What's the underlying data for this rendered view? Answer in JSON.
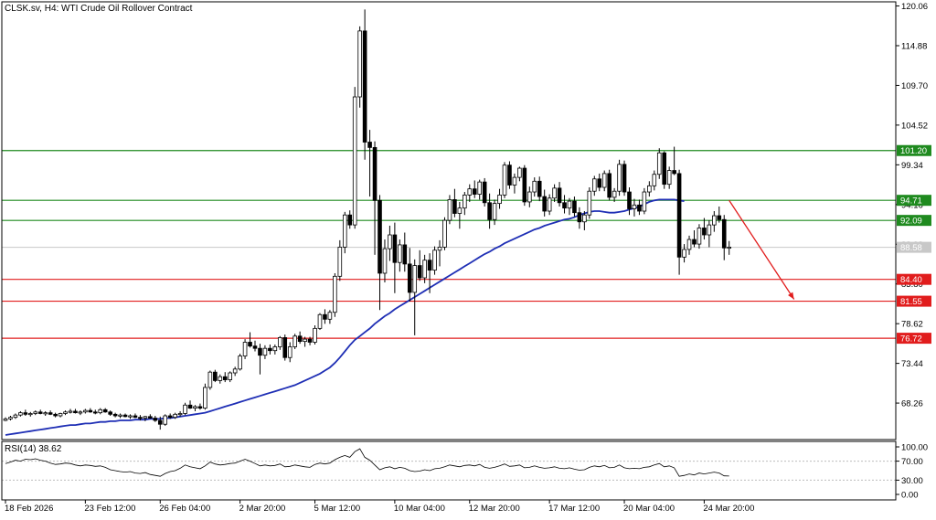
{
  "chart_data": {
    "type": "candlestick",
    "title": "CLSK.sv, H4:  WTI Crude Oil Rollover Contract",
    "ylim": [
      63.5,
      120.6
    ],
    "y_ticks": [
      "120.06",
      "114.88",
      "109.70",
      "104.52",
      "99.34",
      "94.16",
      "88.98",
      "83.80",
      "78.62",
      "73.44",
      "68.26"
    ],
    "x_ticks": [
      {
        "label": "18 Feb 2026",
        "bar": 0
      },
      {
        "label": "23 Feb 12:00",
        "bar": 16
      },
      {
        "label": "26 Feb 04:00",
        "bar": 31
      },
      {
        "label": "2 Mar 20:00",
        "bar": 47
      },
      {
        "label": "5 Mar 12:00",
        "bar": 62
      },
      {
        "label": "10 Mar 04:00",
        "bar": 78
      },
      {
        "label": "12 Mar 20:00",
        "bar": 93
      },
      {
        "label": "17 Mar 12:00",
        "bar": 109
      },
      {
        "label": "20 Mar 04:00",
        "bar": 124
      },
      {
        "label": "24 Mar 20:00",
        "bar": 140
      }
    ],
    "candles": [
      [
        66.0,
        66.4,
        65.9,
        66.2
      ],
      [
        66.2,
        66.6,
        66.0,
        66.4
      ],
      [
        66.4,
        66.9,
        66.2,
        66.7
      ],
      [
        66.7,
        67.2,
        66.5,
        67.0
      ],
      [
        67.0,
        67.4,
        66.6,
        66.8
      ],
      [
        66.8,
        67.1,
        66.5,
        66.9
      ],
      [
        66.9,
        67.3,
        66.7,
        67.1
      ],
      [
        67.1,
        67.4,
        66.8,
        66.9
      ],
      [
        66.9,
        67.2,
        66.6,
        67.0
      ],
      [
        67.0,
        67.3,
        66.7,
        66.8
      ],
      [
        66.8,
        67.0,
        66.4,
        66.6
      ],
      [
        66.6,
        67.0,
        66.4,
        66.9
      ],
      [
        66.9,
        67.3,
        66.7,
        67.1
      ],
      [
        67.1,
        67.5,
        66.9,
        67.2
      ],
      [
        67.2,
        67.5,
        66.9,
        67.0
      ],
      [
        67.0,
        67.3,
        66.7,
        67.1
      ],
      [
        67.1,
        67.5,
        66.9,
        67.3
      ],
      [
        67.3,
        67.6,
        67.0,
        67.1
      ],
      [
        67.1,
        67.4,
        66.8,
        67.0
      ],
      [
        67.0,
        67.6,
        66.8,
        67.4
      ],
      [
        67.4,
        67.6,
        67.0,
        67.1
      ],
      [
        67.1,
        67.3,
        66.6,
        66.8
      ],
      [
        66.8,
        67.0,
        66.4,
        66.6
      ],
      [
        66.6,
        66.9,
        66.3,
        66.7
      ],
      [
        66.7,
        66.9,
        66.4,
        66.5
      ],
      [
        66.5,
        66.8,
        66.2,
        66.6
      ],
      [
        66.6,
        66.9,
        66.3,
        66.4
      ],
      [
        66.4,
        66.7,
        66.0,
        66.3
      ],
      [
        66.3,
        66.6,
        65.9,
        66.5
      ],
      [
        66.5,
        66.8,
        66.2,
        66.3
      ],
      [
        66.3,
        66.6,
        65.8,
        66.0
      ],
      [
        66.0,
        66.5,
        64.8,
        65.5
      ],
      [
        65.5,
        66.8,
        65.3,
        66.6
      ],
      [
        66.6,
        66.9,
        66.2,
        66.4
      ],
      [
        66.4,
        67.0,
        66.2,
        66.8
      ],
      [
        66.8,
        67.2,
        66.5,
        66.9
      ],
      [
        66.9,
        68.3,
        66.7,
        68.0
      ],
      [
        68.0,
        68.6,
        67.5,
        67.6
      ],
      [
        67.6,
        68.0,
        67.2,
        67.8
      ],
      [
        67.8,
        68.2,
        67.4,
        67.6
      ],
      [
        67.6,
        70.8,
        67.4,
        70.3
      ],
      [
        70.3,
        72.5,
        70.0,
        72.3
      ],
      [
        72.3,
        72.6,
        71.0,
        71.2
      ],
      [
        71.2,
        72.0,
        70.8,
        71.7
      ],
      [
        71.7,
        72.3,
        71.0,
        71.3
      ],
      [
        71.3,
        72.4,
        71.0,
        72.2
      ],
      [
        72.2,
        73.0,
        71.8,
        72.7
      ],
      [
        72.7,
        74.7,
        72.5,
        74.4
      ],
      [
        74.4,
        76.6,
        74.0,
        76.2
      ],
      [
        76.2,
        77.5,
        75.5,
        75.7
      ],
      [
        75.7,
        76.4,
        75.0,
        75.4
      ],
      [
        75.4,
        76.0,
        72.0,
        74.5
      ],
      [
        74.5,
        75.8,
        74.0,
        75.4
      ],
      [
        75.4,
        75.9,
        74.6,
        75.1
      ],
      [
        75.1,
        75.9,
        74.6,
        75.6
      ],
      [
        75.6,
        77.0,
        75.2,
        76.8
      ],
      [
        76.8,
        77.2,
        73.8,
        74.2
      ],
      [
        74.2,
        76.2,
        73.6,
        75.6
      ],
      [
        75.6,
        77.3,
        75.3,
        77.0
      ],
      [
        77.0,
        77.6,
        76.0,
        76.3
      ],
      [
        76.3,
        76.9,
        75.6,
        76.6
      ],
      [
        76.6,
        76.9,
        75.8,
        76.2
      ],
      [
        76.2,
        78.4,
        75.9,
        78.0
      ],
      [
        78.0,
        80.0,
        77.8,
        79.8
      ],
      [
        79.8,
        80.5,
        78.6,
        79.2
      ],
      [
        79.2,
        80.4,
        78.6,
        80.1
      ],
      [
        80.1,
        85.2,
        79.5,
        84.8
      ],
      [
        84.8,
        89.5,
        84.2,
        88.6
      ],
      [
        88.6,
        93.2,
        87.8,
        92.8
      ],
      [
        92.8,
        93.4,
        91.0,
        91.5
      ],
      [
        91.5,
        109.5,
        91.0,
        108.2
      ],
      [
        108.2,
        117.4,
        106.8,
        116.8
      ],
      [
        116.8,
        119.6,
        100.0,
        102.3
      ],
      [
        102.3,
        103.9,
        95.2,
        101.6
      ],
      [
        101.6,
        102.4,
        87.6,
        94.7
      ],
      [
        94.7,
        95.4,
        80.4,
        85.2
      ],
      [
        85.2,
        89.6,
        84.0,
        88.4
      ],
      [
        88.4,
        91.4,
        86.8,
        90.2
      ],
      [
        90.2,
        91.8,
        82.6,
        86.6
      ],
      [
        86.6,
        89.6,
        85.4,
        88.9
      ],
      [
        88.9,
        90.5,
        85.4,
        86.4
      ],
      [
        86.4,
        88.5,
        81.5,
        82.7
      ],
      [
        82.7,
        87.0,
        77.1,
        86.2
      ],
      [
        86.2,
        88.2,
        84.2,
        84.6
      ],
      [
        84.6,
        87.6,
        83.9,
        86.9
      ],
      [
        86.9,
        87.8,
        82.6,
        85.6
      ],
      [
        85.6,
        88.7,
        85.0,
        88.2
      ],
      [
        88.2,
        89.5,
        86.1,
        88.6
      ],
      [
        88.6,
        92.5,
        88.2,
        92.1
      ],
      [
        92.1,
        95.4,
        91.6,
        94.8
      ],
      [
        94.8,
        96.2,
        92.5,
        93.0
      ],
      [
        93.0,
        94.5,
        91.0,
        93.7
      ],
      [
        93.7,
        95.8,
        92.8,
        95.4
      ],
      [
        95.4,
        96.8,
        94.5,
        96.2
      ],
      [
        96.2,
        97.3,
        95.0,
        95.5
      ],
      [
        95.5,
        97.4,
        94.8,
        97.1
      ],
      [
        97.1,
        97.6,
        93.9,
        94.4
      ],
      [
        94.4,
        95.6,
        91.0,
        92.2
      ],
      [
        92.2,
        94.8,
        91.5,
        94.3
      ],
      [
        94.3,
        96.2,
        93.6,
        95.4
      ],
      [
        95.4,
        99.7,
        95.0,
        99.3
      ],
      [
        99.3,
        99.8,
        96.2,
        96.7
      ],
      [
        96.7,
        98.2,
        95.6,
        97.7
      ],
      [
        97.7,
        99.1,
        97.2,
        98.9
      ],
      [
        98.9,
        99.3,
        94.0,
        94.5
      ],
      [
        94.5,
        96.5,
        93.8,
        95.8
      ],
      [
        95.8,
        97.7,
        95.2,
        97.2
      ],
      [
        97.2,
        97.8,
        94.6,
        95.2
      ],
      [
        95.2,
        96.1,
        92.6,
        93.3
      ],
      [
        93.3,
        95.5,
        92.8,
        95.0
      ],
      [
        95.0,
        96.8,
        94.5,
        96.3
      ],
      [
        96.3,
        97.1,
        93.9,
        94.4
      ],
      [
        94.4,
        95.4,
        93.0,
        93.7
      ],
      [
        93.7,
        95.0,
        92.8,
        94.6
      ],
      [
        94.6,
        95.2,
        92.6,
        93.1
      ],
      [
        93.1,
        93.8,
        91.0,
        91.9
      ],
      [
        91.9,
        93.3,
        90.8,
        92.8
      ],
      [
        92.8,
        96.4,
        92.3,
        95.9
      ],
      [
        95.9,
        97.9,
        95.3,
        97.5
      ],
      [
        97.5,
        98.2,
        95.9,
        96.4
      ],
      [
        96.4,
        98.6,
        95.9,
        98.2
      ],
      [
        98.2,
        98.7,
        94.7,
        95.1
      ],
      [
        95.1,
        96.3,
        94.5,
        95.9
      ],
      [
        95.9,
        100.0,
        95.3,
        99.4
      ],
      [
        99.4,
        99.9,
        95.3,
        95.8
      ],
      [
        95.8,
        96.4,
        92.8,
        93.6
      ],
      [
        93.6,
        94.9,
        92.6,
        94.1
      ],
      [
        94.1,
        94.8,
        92.8,
        93.3
      ],
      [
        93.3,
        96.3,
        92.9,
        95.8
      ],
      [
        95.8,
        97.2,
        95.2,
        96.6
      ],
      [
        96.6,
        98.6,
        96.0,
        98.1
      ],
      [
        98.1,
        101.5,
        97.5,
        100.9
      ],
      [
        100.9,
        101.1,
        96.2,
        96.8
      ],
      [
        96.8,
        99.1,
        96.2,
        98.6
      ],
      [
        98.6,
        101.7,
        98.0,
        98.2
      ],
      [
        98.2,
        98.7,
        85.0,
        87.3
      ],
      [
        87.3,
        89.0,
        86.6,
        88.3
      ],
      [
        88.3,
        90.1,
        87.6,
        89.6
      ],
      [
        89.6,
        90.8,
        88.6,
        89.0
      ],
      [
        89.0,
        91.6,
        88.4,
        91.1
      ],
      [
        91.1,
        92.4,
        89.6,
        90.2
      ],
      [
        90.2,
        92.1,
        88.6,
        91.5
      ],
      [
        91.5,
        93.3,
        90.6,
        92.7
      ],
      [
        92.7,
        93.9,
        91.8,
        92.2
      ],
      [
        92.2,
        92.8,
        86.9,
        88.5
      ],
      [
        88.5,
        89.4,
        87.6,
        88.6
      ]
    ],
    "ma": {
      "type": "line",
      "color": "#1f2fb5",
      "values": [
        64.1,
        64.2,
        64.3,
        64.4,
        64.5,
        64.6,
        64.7,
        64.8,
        64.9,
        65.0,
        65.1,
        65.2,
        65.3,
        65.4,
        65.4,
        65.5,
        65.6,
        65.6,
        65.7,
        65.8,
        65.8,
        65.9,
        65.9,
        66.0,
        66.0,
        66.0,
        66.1,
        66.1,
        66.1,
        66.2,
        66.2,
        66.2,
        66.3,
        66.3,
        66.4,
        66.5,
        66.6,
        66.7,
        66.8,
        66.9,
        67.0,
        67.2,
        67.4,
        67.6,
        67.8,
        68.0,
        68.2,
        68.4,
        68.6,
        68.8,
        69.0,
        69.2,
        69.4,
        69.6,
        69.8,
        70.0,
        70.2,
        70.4,
        70.6,
        70.9,
        71.2,
        71.5,
        71.8,
        72.1,
        72.5,
        72.9,
        73.5,
        74.2,
        75.0,
        75.8,
        76.5,
        77.0,
        77.5,
        78.0,
        78.6,
        79.1,
        79.6,
        80.0,
        80.5,
        80.9,
        81.3,
        81.7,
        82.1,
        82.5,
        82.9,
        83.3,
        83.7,
        84.1,
        84.5,
        84.9,
        85.3,
        85.7,
        86.1,
        86.5,
        86.9,
        87.3,
        87.7,
        88.0,
        88.4,
        88.7,
        89.1,
        89.4,
        89.7,
        90.0,
        90.3,
        90.6,
        90.9,
        91.1,
        91.4,
        91.6,
        91.8,
        92.0,
        92.2,
        92.3,
        92.5,
        92.8,
        93.0,
        93.2,
        93.3,
        93.3,
        93.2,
        93.1,
        93.1,
        93.2,
        93.3,
        93.5,
        93.7,
        93.9,
        94.2,
        94.5,
        94.7,
        94.8,
        94.8,
        94.8,
        94.8,
        94.7,
        94.6
      ]
    },
    "levels": [
      {
        "value": 101.2,
        "label": "101.20",
        "color": "#1f8a1f"
      },
      {
        "value": 94.71,
        "label": "94.71",
        "color": "#1f8a1f"
      },
      {
        "value": 92.09,
        "label": "92.09",
        "color": "#1f8a1f"
      },
      {
        "value": 84.4,
        "label": "84.40",
        "color": "#e11d1d"
      },
      {
        "value": 81.55,
        "label": "81.55",
        "color": "#e11d1d"
      },
      {
        "value": 76.72,
        "label": "76.72",
        "color": "#e11d1d"
      }
    ],
    "current_price": {
      "value": 88.58,
      "label": "88.58"
    },
    "arrow": {
      "from_bar": 145,
      "from_value": 94.7,
      "to_bar": 158,
      "to_value": 81.8,
      "color": "#e11d1d"
    },
    "rsi": {
      "title": "RSI(14) 38.62",
      "ylim": [
        0,
        100
      ],
      "ticks": [
        "100.00",
        "70.00",
        "30.00",
        "0.00"
      ],
      "levels": [
        70,
        30
      ],
      "values": [
        65,
        68,
        72,
        70,
        74,
        73,
        75,
        72,
        70,
        66,
        63,
        64,
        66,
        65,
        62,
        60,
        62,
        61,
        59,
        60,
        57,
        52,
        50,
        48,
        47,
        48,
        45,
        44,
        46,
        42,
        40,
        38,
        44,
        48,
        50,
        55,
        62,
        58,
        56,
        54,
        60,
        68,
        64,
        62,
        63,
        65,
        66,
        70,
        74,
        70,
        65,
        60,
        62,
        60,
        61,
        64,
        58,
        59,
        62,
        60,
        58,
        57,
        63,
        66,
        64,
        66,
        73,
        78,
        82,
        78,
        90,
        96,
        78,
        72,
        62,
        52,
        56,
        58,
        54,
        57,
        55,
        50,
        48,
        49,
        52,
        50,
        54,
        55,
        58,
        62,
        60,
        58,
        61,
        62,
        60,
        63,
        57,
        55,
        57,
        60,
        64,
        59,
        60,
        62,
        56,
        57,
        60,
        57,
        55,
        56,
        58,
        55,
        54,
        56,
        53,
        51,
        52,
        57,
        60,
        58,
        61,
        56,
        57,
        62,
        56,
        54,
        55,
        54,
        57,
        58,
        62,
        65,
        58,
        60,
        56,
        38,
        40,
        43,
        41,
        45,
        43,
        45,
        47,
        45,
        39,
        38.62
      ]
    }
  }
}
